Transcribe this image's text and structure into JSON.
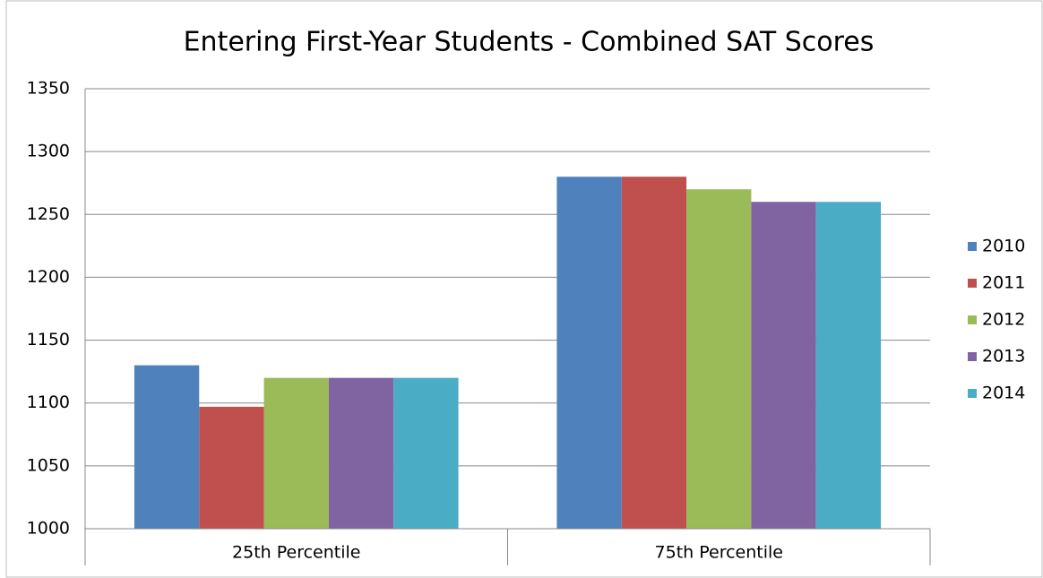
{
  "chart_data": {
    "type": "bar",
    "title": "Entering First-Year Students - Combined SAT Scores",
    "categories": [
      "25th Percentile",
      "75th Percentile"
    ],
    "series": [
      {
        "name": "2010",
        "color": "#4f81bd",
        "values": [
          1130,
          1280
        ]
      },
      {
        "name": "2011",
        "color": "#c0504d",
        "values": [
          1097,
          1280
        ]
      },
      {
        "name": "2012",
        "color": "#9bbb59",
        "values": [
          1120,
          1270
        ]
      },
      {
        "name": "2013",
        "color": "#8064a2",
        "values": [
          1120,
          1260
        ]
      },
      {
        "name": "2014",
        "color": "#4bacc6",
        "values": [
          1120,
          1260
        ]
      }
    ],
    "ylim": [
      1000,
      1350
    ],
    "yticks": [
      1000,
      1050,
      1100,
      1150,
      1200,
      1250,
      1300,
      1350
    ],
    "grid": true,
    "legend": "right"
  }
}
